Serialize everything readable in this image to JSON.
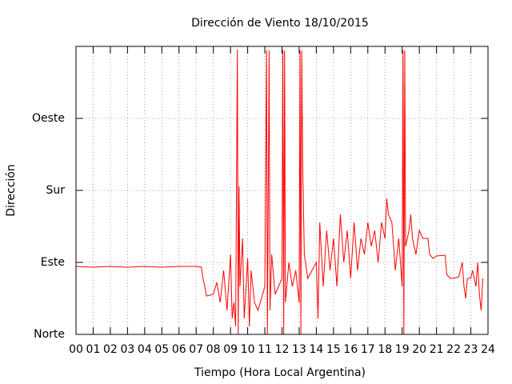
{
  "chart_data": {
    "type": "line",
    "title": "Dirección de Viento 18/10/2015",
    "xlabel": "Tiempo (Hora Local Argentina)",
    "ylabel": "Dirección",
    "grid": true,
    "xlim": [
      0,
      24
    ],
    "ylim": [
      0,
      360
    ],
    "xticks": [
      {
        "value": 0,
        "label": "00"
      },
      {
        "value": 1,
        "label": "01"
      },
      {
        "value": 2,
        "label": "02"
      },
      {
        "value": 3,
        "label": "03"
      },
      {
        "value": 4,
        "label": "04"
      },
      {
        "value": 5,
        "label": "05"
      },
      {
        "value": 6,
        "label": "06"
      },
      {
        "value": 7,
        "label": "07"
      },
      {
        "value": 8,
        "label": "08"
      },
      {
        "value": 9,
        "label": "09"
      },
      10,
      11,
      12,
      13,
      14,
      15,
      16,
      17,
      18,
      19,
      20,
      21,
      22,
      23,
      24
    ],
    "yticks": [
      {
        "value": 0,
        "label": "Norte"
      },
      {
        "value": 90,
        "label": "Este"
      },
      {
        "value": 180,
        "label": "Sur"
      },
      {
        "value": 270,
        "label": "Oeste"
      }
    ],
    "x": [
      0,
      1,
      2,
      3,
      4,
      5,
      6,
      7,
      7.3,
      7.4,
      7.5,
      7.6,
      8.0,
      8.2,
      8.4,
      8.6,
      8.8,
      9.0,
      9.1,
      9.2,
      9.3,
      9.4,
      9.45,
      9.5,
      9.55,
      9.7,
      9.8,
      10.0,
      10.1,
      10.2,
      10.4,
      10.6,
      11.0,
      11.1,
      11.15,
      11.25,
      11.3,
      11.4,
      11.6,
      12.0,
      12.05,
      12.1,
      12.15,
      12.2,
      12.4,
      12.6,
      12.8,
      13.0,
      13.05,
      13.1,
      13.15,
      13.2,
      13.3,
      13.5,
      14.0,
      14.1,
      14.2,
      14.4,
      14.6,
      14.8,
      15.0,
      15.2,
      15.4,
      15.6,
      15.8,
      16.0,
      16.2,
      16.4,
      16.6,
      16.8,
      17.0,
      17.2,
      17.4,
      17.6,
      17.8,
      18.0,
      18.1,
      18.2,
      18.4,
      18.6,
      18.8,
      19.0,
      19.05,
      19.1,
      19.15,
      19.2,
      19.4,
      19.5,
      19.6,
      19.8,
      20.0,
      20.2,
      20.5,
      20.6,
      20.8,
      21.0,
      21.5,
      21.6,
      21.8,
      22.0,
      22.3,
      22.5,
      22.6,
      22.7,
      22.8,
      23.0,
      23.1,
      23.3,
      23.4,
      23.5,
      23.6,
      23.7
    ],
    "series": [
      {
        "color": "#ff0000",
        "values": [
          85,
          84,
          85,
          84,
          85,
          84,
          85,
          85,
          84,
          70,
          60,
          48,
          50,
          65,
          40,
          80,
          30,
          100,
          20,
          40,
          10,
          356,
          0,
          185,
          60,
          120,
          20,
          95,
          10,
          80,
          40,
          30,
          60,
          355,
          0,
          355,
          30,
          100,
          50,
          70,
          355,
          0,
          355,
          40,
          90,
          60,
          80,
          40,
          355,
          0,
          355,
          220,
          100,
          70,
          90,
          20,
          140,
          60,
          130,
          80,
          120,
          60,
          150,
          90,
          130,
          70,
          140,
          80,
          120,
          100,
          140,
          110,
          130,
          90,
          140,
          120,
          170,
          150,
          140,
          80,
          120,
          60,
          355,
          0,
          355,
          110,
          130,
          150,
          120,
          100,
          130,
          120,
          120,
          100,
          95,
          98,
          99,
          75,
          70,
          70,
          72,
          90,
          60,
          45,
          70,
          70,
          80,
          60,
          90,
          50,
          30,
          70
        ]
      }
    ]
  }
}
